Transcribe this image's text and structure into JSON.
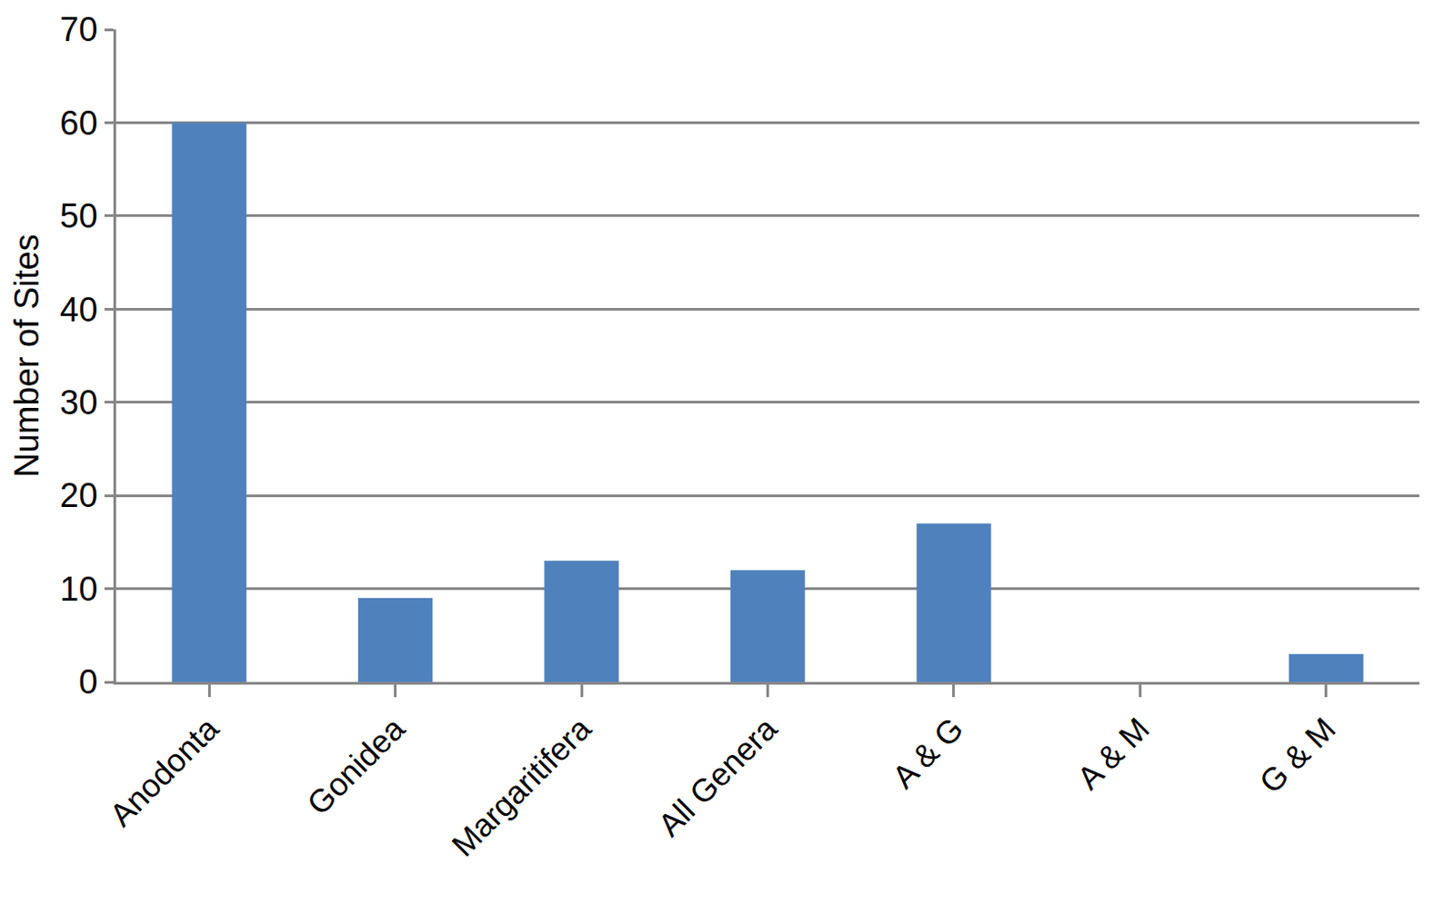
{
  "chart_data": {
    "type": "bar",
    "y_label": "Number of Sites",
    "categories": [
      "Anodonta",
      "Gonidea",
      "Margaritifera",
      "All Genera",
      "A & G",
      "A & M",
      "G & M"
    ],
    "values": [
      60,
      9,
      13,
      12,
      17,
      0,
      3
    ],
    "color": "#4f81bd",
    "ylim": [
      0,
      70
    ],
    "yticks": [
      0,
      10,
      20,
      30,
      40,
      50,
      60,
      70
    ],
    "grid": true
  }
}
